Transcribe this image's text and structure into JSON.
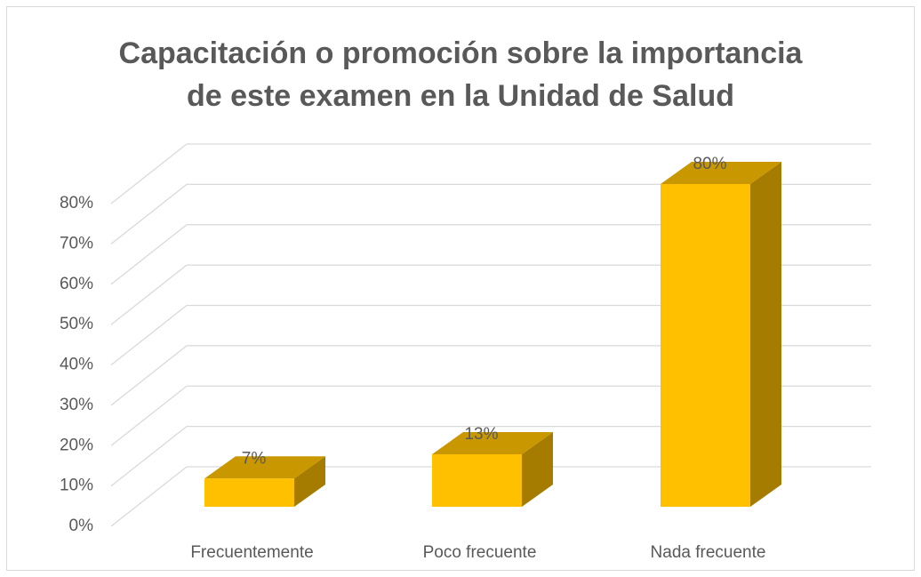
{
  "chart_data": {
    "type": "bar3d",
    "title": "Capacitación o promoción sobre la importancia de este examen en la Unidad de Salud",
    "categories": [
      "Frecuentemente",
      "Poco frecuente",
      "Nada frecuente"
    ],
    "values": [
      7,
      13,
      80
    ],
    "value_labels": [
      "7%",
      "13%",
      "80%"
    ],
    "color": "#ffc000",
    "ylim": [
      0,
      80
    ],
    "yticks": [
      {
        "value": 0,
        "label": "0%"
      },
      {
        "value": 10,
        "label": "10%"
      },
      {
        "value": 20,
        "label": "20%"
      },
      {
        "value": 30,
        "label": "30%"
      },
      {
        "value": 40,
        "label": "40%"
      },
      {
        "value": 50,
        "label": "50%"
      },
      {
        "value": 60,
        "label": "60%"
      },
      {
        "value": 70,
        "label": "70%"
      },
      {
        "value": 80,
        "label": "80%"
      }
    ],
    "grid": true
  }
}
